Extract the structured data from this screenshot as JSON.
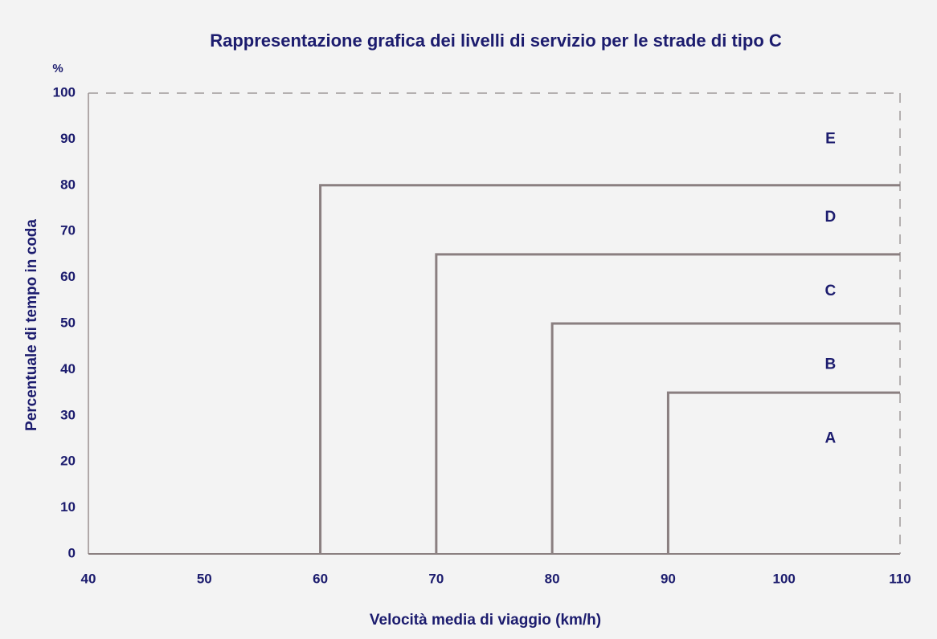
{
  "chart_data": {
    "type": "line",
    "title": "Rappresentazione grafica dei livelli di servizio per le strade di tipo C",
    "x_label": "Velocità media di viaggio (km/h)",
    "y_label": "Percentuale di tempo in coda",
    "y_unit": "%",
    "xlim": [
      40,
      110
    ],
    "ylim": [
      0,
      100
    ],
    "xticks": [
      40,
      50,
      60,
      70,
      80,
      90,
      100,
      110
    ],
    "yticks": [
      0,
      10,
      20,
      30,
      40,
      50,
      60,
      70,
      80,
      90,
      100
    ],
    "grid": false,
    "series": [
      {
        "color": "#8a7f80",
        "x": [
          60,
          60,
          110
        ],
        "values": [
          0,
          80,
          80
        ]
      },
      {
        "color": "#8a7f80",
        "x": [
          70,
          70,
          110
        ],
        "values": [
          0,
          65,
          65
        ]
      },
      {
        "color": "#8a7f80",
        "x": [
          80,
          80,
          110
        ],
        "values": [
          0,
          50,
          50
        ]
      },
      {
        "color": "#8a7f80",
        "x": [
          90,
          90,
          110
        ],
        "values": [
          0,
          35,
          35
        ]
      }
    ],
    "annotations": [
      {
        "text": "E",
        "x": 104,
        "y": 90
      },
      {
        "text": "D",
        "x": 104,
        "y": 73
      },
      {
        "text": "C",
        "x": 104,
        "y": 57
      },
      {
        "text": "B",
        "x": 104,
        "y": 41
      },
      {
        "text": "A",
        "x": 104,
        "y": 25
      }
    ]
  }
}
